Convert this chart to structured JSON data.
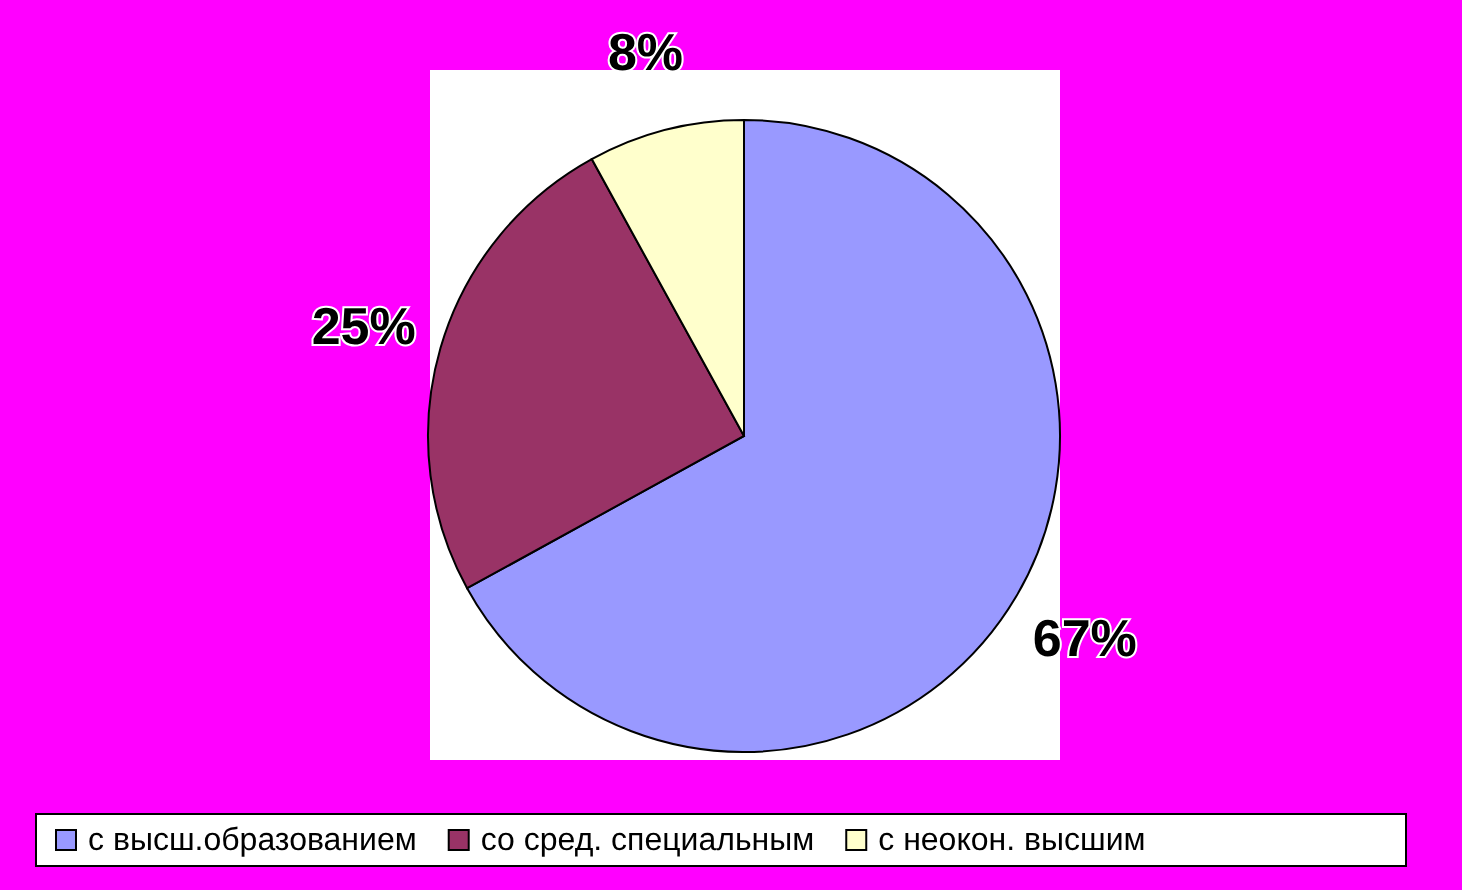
{
  "chart_data": {
    "type": "pie",
    "categories": [
      "с высш.образованием",
      "со сред. специальным",
      "с неокон. высшим"
    ],
    "values": [
      67,
      25,
      8
    ],
    "colors": [
      "#9999ff",
      "#993366",
      "#ffffcc"
    ],
    "value_labels": [
      "67%",
      "25%",
      "8%"
    ],
    "legend": "bottom"
  }
}
